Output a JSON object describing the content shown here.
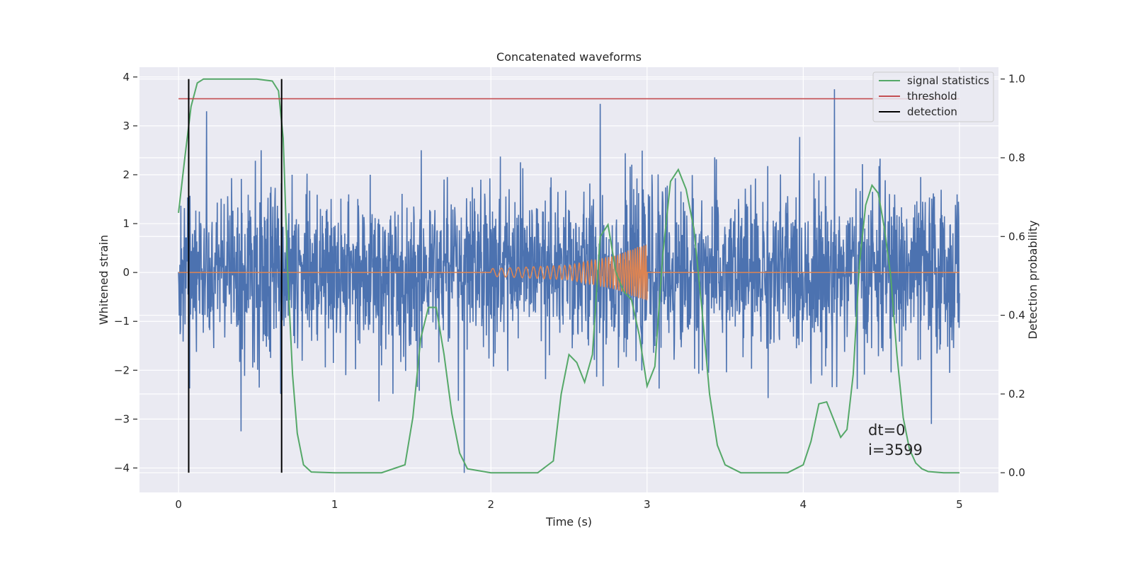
{
  "chart_data": {
    "type": "line",
    "title": "Concatenated waveforms",
    "xlabel": "Time (s)",
    "ylabel": "Whitened strain",
    "y2label": "Detection probability",
    "xlim": [
      -0.25,
      5.25
    ],
    "ylim": [
      -4.5,
      4.2
    ],
    "y2lim": [
      -0.05,
      1.03
    ],
    "x_ticks": [
      "0",
      "1",
      "2",
      "3",
      "4",
      "5"
    ],
    "y_ticks": [
      "4",
      "3",
      "2",
      "1",
      "0",
      "−1",
      "−2",
      "−3",
      "−4"
    ],
    "y2_ticks": [
      "1.0",
      "0.8",
      "0.6",
      "0.4",
      "0.2",
      "0.0"
    ],
    "grid": true,
    "legend": {
      "placement": "upper right",
      "entries": [
        "signal statistics",
        "threshold",
        "detection"
      ]
    },
    "colors": {
      "noise": "#4c72b0",
      "waveform": "#dd8452",
      "signal_statistics": "#55a868",
      "threshold": "#c44e52",
      "detection": "#000000",
      "plot_bg": "#eaeaf2",
      "grid": "#ffffff"
    },
    "series": [
      {
        "name": "whitened strain",
        "type": "noise",
        "x_range": [
          0,
          5
        ],
        "envelope_typical": [
          -1.5,
          1.5
        ],
        "peaks": [
          {
            "x": 0.18,
            "y": 3.3
          },
          {
            "x": 0.53,
            "y": 2.5
          },
          {
            "x": 2.7,
            "y": 3.45
          },
          {
            "x": 4.2,
            "y": 3.75
          },
          {
            "x": 1.83,
            "y": -4.1
          },
          {
            "x": 0.4,
            "y": -3.25
          },
          {
            "x": 4.82,
            "y": -3.1
          }
        ]
      },
      {
        "name": "waveform",
        "type": "chirp",
        "x": [
          0,
          2,
          2.5,
          2.8,
          3.0,
          3.0,
          5
        ],
        "amplitude": [
          0,
          0.08,
          0.15,
          0.35,
          0.6,
          0,
          0
        ]
      },
      {
        "name": "signal statistics",
        "axis": "right",
        "x": [
          0,
          0.04,
          0.08,
          0.12,
          0.16,
          0.25,
          0.5,
          0.6,
          0.64,
          0.67,
          0.7,
          0.73,
          0.76,
          0.8,
          0.85,
          1.0,
          1.3,
          1.45,
          1.5,
          1.55,
          1.6,
          1.65,
          1.7,
          1.75,
          1.8,
          1.85,
          2.0,
          2.3,
          2.4,
          2.45,
          2.5,
          2.55,
          2.6,
          2.65,
          2.7,
          2.75,
          2.8,
          2.85,
          2.9,
          2.95,
          3.0,
          3.05,
          3.1,
          3.15,
          3.2,
          3.25,
          3.3,
          3.35,
          3.4,
          3.45,
          3.5,
          3.6,
          3.9,
          4.0,
          4.05,
          4.1,
          4.15,
          4.2,
          4.24,
          4.28,
          4.32,
          4.36,
          4.4,
          4.44,
          4.48,
          4.52,
          4.56,
          4.6,
          4.64,
          4.68,
          4.72,
          4.76,
          4.8,
          4.9,
          5.0
        ],
        "y": [
          0.66,
          0.8,
          0.93,
          0.99,
          1.0,
          1.0,
          1.0,
          0.995,
          0.97,
          0.85,
          0.5,
          0.25,
          0.1,
          0.02,
          0.002,
          0.0,
          0.0,
          0.02,
          0.14,
          0.34,
          0.42,
          0.42,
          0.3,
          0.15,
          0.05,
          0.01,
          0.0,
          0.0,
          0.03,
          0.2,
          0.3,
          0.28,
          0.23,
          0.3,
          0.6,
          0.63,
          0.51,
          0.46,
          0.44,
          0.35,
          0.22,
          0.27,
          0.55,
          0.74,
          0.77,
          0.72,
          0.62,
          0.42,
          0.2,
          0.07,
          0.02,
          0.0,
          0.0,
          0.02,
          0.08,
          0.175,
          0.18,
          0.13,
          0.09,
          0.11,
          0.25,
          0.53,
          0.68,
          0.73,
          0.71,
          0.62,
          0.5,
          0.3,
          0.14,
          0.06,
          0.025,
          0.01,
          0.003,
          0.0,
          0.0
        ]
      },
      {
        "name": "threshold",
        "axis": "right",
        "x": [
          0,
          5
        ],
        "y": [
          0.95,
          0.95
        ]
      },
      {
        "name": "detection",
        "axis": "right",
        "type": "vertical_lines",
        "x": [
          0.065,
          0.66
        ],
        "y_range": [
          0.0,
          1.0
        ]
      }
    ],
    "annotations": [
      "dt=0",
      "i=3599"
    ]
  }
}
